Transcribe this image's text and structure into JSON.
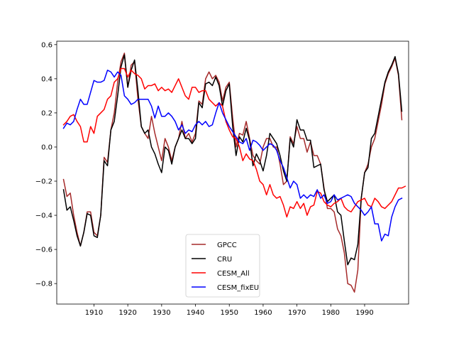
{
  "chart_data": {
    "type": "line",
    "title": "",
    "xlabel": "",
    "ylabel": "",
    "xlim": [
      1899,
      2003
    ],
    "ylim": [
      -0.92,
      0.62
    ],
    "xticks": [
      1910,
      1920,
      1930,
      1940,
      1950,
      1960,
      1970,
      1980,
      1990
    ],
    "yticks": [
      -0.8,
      -0.6,
      -0.4,
      -0.2,
      0.0,
      0.2,
      0.4,
      0.6
    ],
    "ytick_labels": [
      "−0.8",
      "−0.6",
      "−0.4",
      "−0.2",
      "0.0",
      "0.2",
      "0.4",
      "0.6"
    ],
    "legend_position": "lower-center",
    "x_start": 1901,
    "series": [
      {
        "name": "GPCC",
        "color": "#a52a2a",
        "values": [
          -0.19,
          -0.29,
          -0.27,
          -0.4,
          -0.5,
          -0.58,
          -0.5,
          -0.38,
          -0.38,
          -0.5,
          -0.52,
          -0.4,
          -0.06,
          -0.09,
          0.1,
          0.2,
          0.38,
          0.5,
          0.55,
          0.35,
          0.48,
          0.5,
          0.28,
          0.12,
          0.08,
          0.05,
          0.18,
          0.08,
          0.0,
          -0.08,
          0.05,
          0.0,
          -0.08,
          0.0,
          0.05,
          0.15,
          0.05,
          0.08,
          0.03,
          0.08,
          0.27,
          0.25,
          0.4,
          0.44,
          0.4,
          0.42,
          0.38,
          0.27,
          0.35,
          0.38,
          0.17,
          0.0,
          0.08,
          0.07,
          0.15,
          0.05,
          -0.05,
          -0.08,
          -0.1,
          0.0,
          0.05,
          0.05,
          0.0,
          0.0,
          -0.1,
          -0.22,
          -0.2,
          0.06,
          0.02,
          0.12,
          0.05,
          0.05,
          -0.03,
          0.03,
          -0.05,
          -0.05,
          -0.1,
          -0.24,
          -0.36,
          -0.36,
          -0.38,
          -0.48,
          -0.52,
          -0.62,
          -0.8,
          -0.81,
          -0.85,
          -0.72,
          -0.3,
          -0.15,
          -0.1,
          0.0,
          0.05,
          0.15,
          0.25,
          0.37,
          0.43,
          0.47,
          0.52,
          0.42,
          0.16
        ]
      },
      {
        "name": "CRU",
        "color": "#000000",
        "values": [
          -0.25,
          -0.37,
          -0.35,
          -0.43,
          -0.52,
          -0.58,
          -0.5,
          -0.39,
          -0.4,
          -0.52,
          -0.53,
          -0.4,
          -0.08,
          -0.11,
          0.1,
          0.15,
          0.3,
          0.47,
          0.54,
          0.35,
          0.45,
          0.51,
          0.33,
          0.12,
          0.08,
          0.1,
          0.0,
          -0.04,
          -0.1,
          -0.15,
          0.0,
          -0.02,
          -0.1,
          0.0,
          0.05,
          0.1,
          0.05,
          0.05,
          0.02,
          0.05,
          0.26,
          0.23,
          0.37,
          0.38,
          0.36,
          0.41,
          0.36,
          0.24,
          0.33,
          0.37,
          0.12,
          -0.05,
          0.06,
          0.03,
          0.11,
          0.04,
          -0.11,
          -0.04,
          -0.08,
          -0.14,
          -0.05,
          0.08,
          0.05,
          0.02,
          -0.05,
          -0.14,
          -0.2,
          0.05,
          0.0,
          0.16,
          0.1,
          0.1,
          0.04,
          0.04,
          -0.12,
          -0.11,
          -0.1,
          -0.25,
          -0.32,
          -0.3,
          -0.28,
          -0.38,
          -0.4,
          -0.55,
          -0.69,
          -0.65,
          -0.66,
          -0.57,
          -0.3,
          -0.15,
          -0.12,
          0.05,
          0.08,
          0.18,
          0.28,
          0.38,
          0.44,
          0.48,
          0.53,
          0.43,
          0.21
        ]
      },
      {
        "name": "CESM_All",
        "color": "#ff0000",
        "values": [
          0.13,
          0.15,
          0.18,
          0.19,
          0.15,
          0.12,
          0.03,
          0.03,
          0.12,
          0.08,
          0.18,
          0.2,
          0.22,
          0.28,
          0.3,
          0.38,
          0.4,
          0.46,
          0.46,
          0.41,
          0.45,
          0.43,
          0.42,
          0.4,
          0.34,
          0.36,
          0.36,
          0.37,
          0.33,
          0.35,
          0.33,
          0.34,
          0.32,
          0.36,
          0.4,
          0.35,
          0.3,
          0.28,
          0.35,
          0.35,
          0.32,
          0.33,
          0.33,
          0.28,
          0.26,
          0.24,
          0.26,
          0.24,
          0.15,
          0.1,
          0.06,
          0.05,
          0.0,
          -0.08,
          -0.04,
          -0.07,
          -0.08,
          -0.13,
          -0.2,
          -0.22,
          -0.28,
          -0.22,
          -0.28,
          -0.3,
          -0.29,
          -0.34,
          -0.41,
          -0.35,
          -0.36,
          -0.32,
          -0.36,
          -0.33,
          -0.4,
          -0.35,
          -0.34,
          -0.26,
          -0.27,
          -0.32,
          -0.34,
          -0.35,
          -0.33,
          -0.32,
          -0.3,
          -0.35,
          -0.37,
          -0.38,
          -0.35,
          -0.32,
          -0.31,
          -0.3,
          -0.34,
          -0.35,
          -0.3,
          -0.32,
          -0.35,
          -0.36,
          -0.34,
          -0.32,
          -0.28,
          -0.24,
          -0.24,
          -0.23
        ]
      },
      {
        "name": "CESM_fixEU",
        "color": "#0000ff",
        "values": [
          0.11,
          0.14,
          0.13,
          0.15,
          0.22,
          0.28,
          0.25,
          0.25,
          0.32,
          0.39,
          0.38,
          0.38,
          0.39,
          0.45,
          0.44,
          0.41,
          0.44,
          0.42,
          0.3,
          0.28,
          0.25,
          0.26,
          0.28,
          0.28,
          0.28,
          0.28,
          0.24,
          0.17,
          0.24,
          0.18,
          0.18,
          0.2,
          0.18,
          0.15,
          0.1,
          0.13,
          0.08,
          0.1,
          0.09,
          0.13,
          0.15,
          0.13,
          0.15,
          0.12,
          0.13,
          0.2,
          0.26,
          0.2,
          0.16,
          0.12,
          0.09,
          0.06,
          0.03,
          0.02,
          0.05,
          -0.02,
          0.04,
          0.03,
          0.01,
          -0.02,
          0.0,
          0.02,
          0.01,
          -0.02,
          -0.08,
          -0.12,
          -0.18,
          -0.24,
          -0.2,
          -0.22,
          -0.3,
          -0.28,
          -0.3,
          -0.28,
          -0.29,
          -0.25,
          -0.3,
          -0.28,
          -0.33,
          -0.32,
          -0.28,
          -0.31,
          -0.3,
          -0.29,
          -0.28,
          -0.29,
          -0.33,
          -0.35,
          -0.37,
          -0.4,
          -0.38,
          -0.35,
          -0.45,
          -0.45,
          -0.55,
          -0.51,
          -0.52,
          -0.41,
          -0.35,
          -0.31,
          -0.3
        ]
      }
    ]
  }
}
